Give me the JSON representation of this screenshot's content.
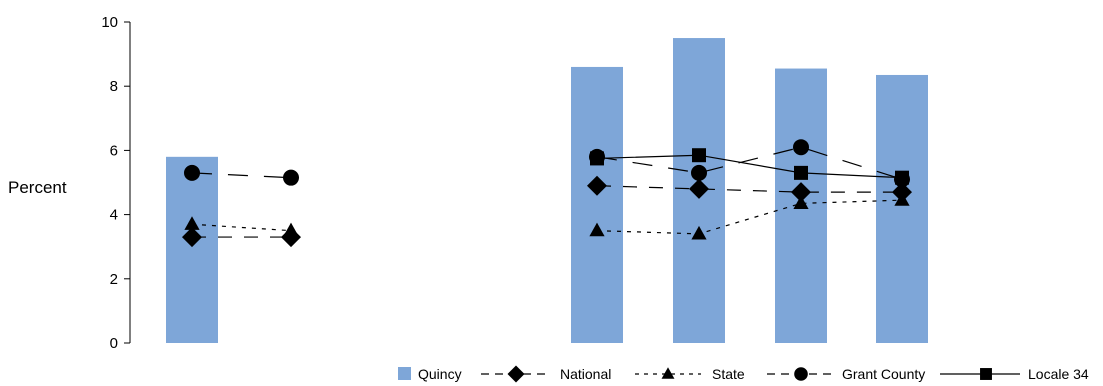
{
  "chart_data": {
    "type": "bar",
    "ylabel": "Percent",
    "ylim": [
      0,
      10
    ],
    "yticks": [
      0,
      2,
      4,
      6,
      8,
      10
    ],
    "groups": [
      {
        "categories": [
          "",
          ""
        ]
      },
      {
        "categories": [
          "",
          "",
          "",
          ""
        ]
      }
    ],
    "bar_series": {
      "name": "Quincy",
      "color": "#7ea6d8",
      "values": [
        5.8,
        null,
        8.6,
        9.5,
        8.55,
        8.35
      ]
    },
    "line_series": [
      {
        "name": "National",
        "marker": "diamond",
        "dash": "dash",
        "values": [
          3.3,
          3.3,
          4.9,
          4.8,
          4.7,
          4.7
        ]
      },
      {
        "name": "State",
        "marker": "triangle",
        "dash": "dot",
        "values": [
          3.7,
          3.5,
          3.5,
          3.4,
          4.35,
          4.45
        ]
      },
      {
        "name": "Grant County",
        "marker": "circle",
        "dash": "longdash",
        "values": [
          5.3,
          5.15,
          5.8,
          5.3,
          6.1,
          5.1
        ]
      },
      {
        "name": "Locale 34",
        "marker": "square",
        "dash": "solid",
        "values": [
          null,
          null,
          5.75,
          5.85,
          5.3,
          5.15
        ]
      }
    ],
    "legend_position": "bottom"
  }
}
